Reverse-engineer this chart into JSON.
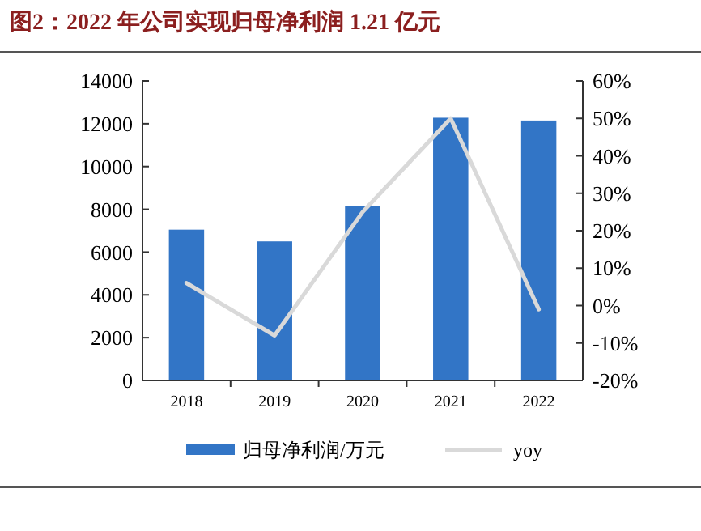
{
  "chart_data": {
    "type": "bar",
    "title": "图2：2022 年公司实现归母净利润 1.21 亿元",
    "categories": [
      "2018",
      "2019",
      "2020",
      "2021",
      "2022"
    ],
    "series": [
      {
        "name": "归母净利润/万元",
        "color": "#3275c6",
        "values": [
          7050,
          6500,
          8150,
          12280,
          12150
        ]
      },
      {
        "name": "yoy",
        "type": "line",
        "axis": "y2",
        "color": "#d9d9d9",
        "values": [
          6,
          -8,
          25,
          50,
          -1
        ]
      }
    ],
    "ylim": [
      0,
      14000
    ],
    "yticks": [
      0,
      2000,
      4000,
      6000,
      8000,
      10000,
      12000,
      14000
    ],
    "y2lim": [
      -20,
      60
    ],
    "y2ticks": [
      {
        "value": -20,
        "label": "-20%"
      },
      {
        "value": -10,
        "label": "-10%"
      },
      {
        "value": 0,
        "label": "0%"
      },
      {
        "value": 10,
        "label": "10%"
      },
      {
        "value": 20,
        "label": "20%"
      },
      {
        "value": 30,
        "label": "30%"
      },
      {
        "value": 40,
        "label": "40%"
      },
      {
        "value": 50,
        "label": "50%"
      },
      {
        "value": 60,
        "label": "60%"
      }
    ],
    "legend": "bottom",
    "grid": false
  }
}
